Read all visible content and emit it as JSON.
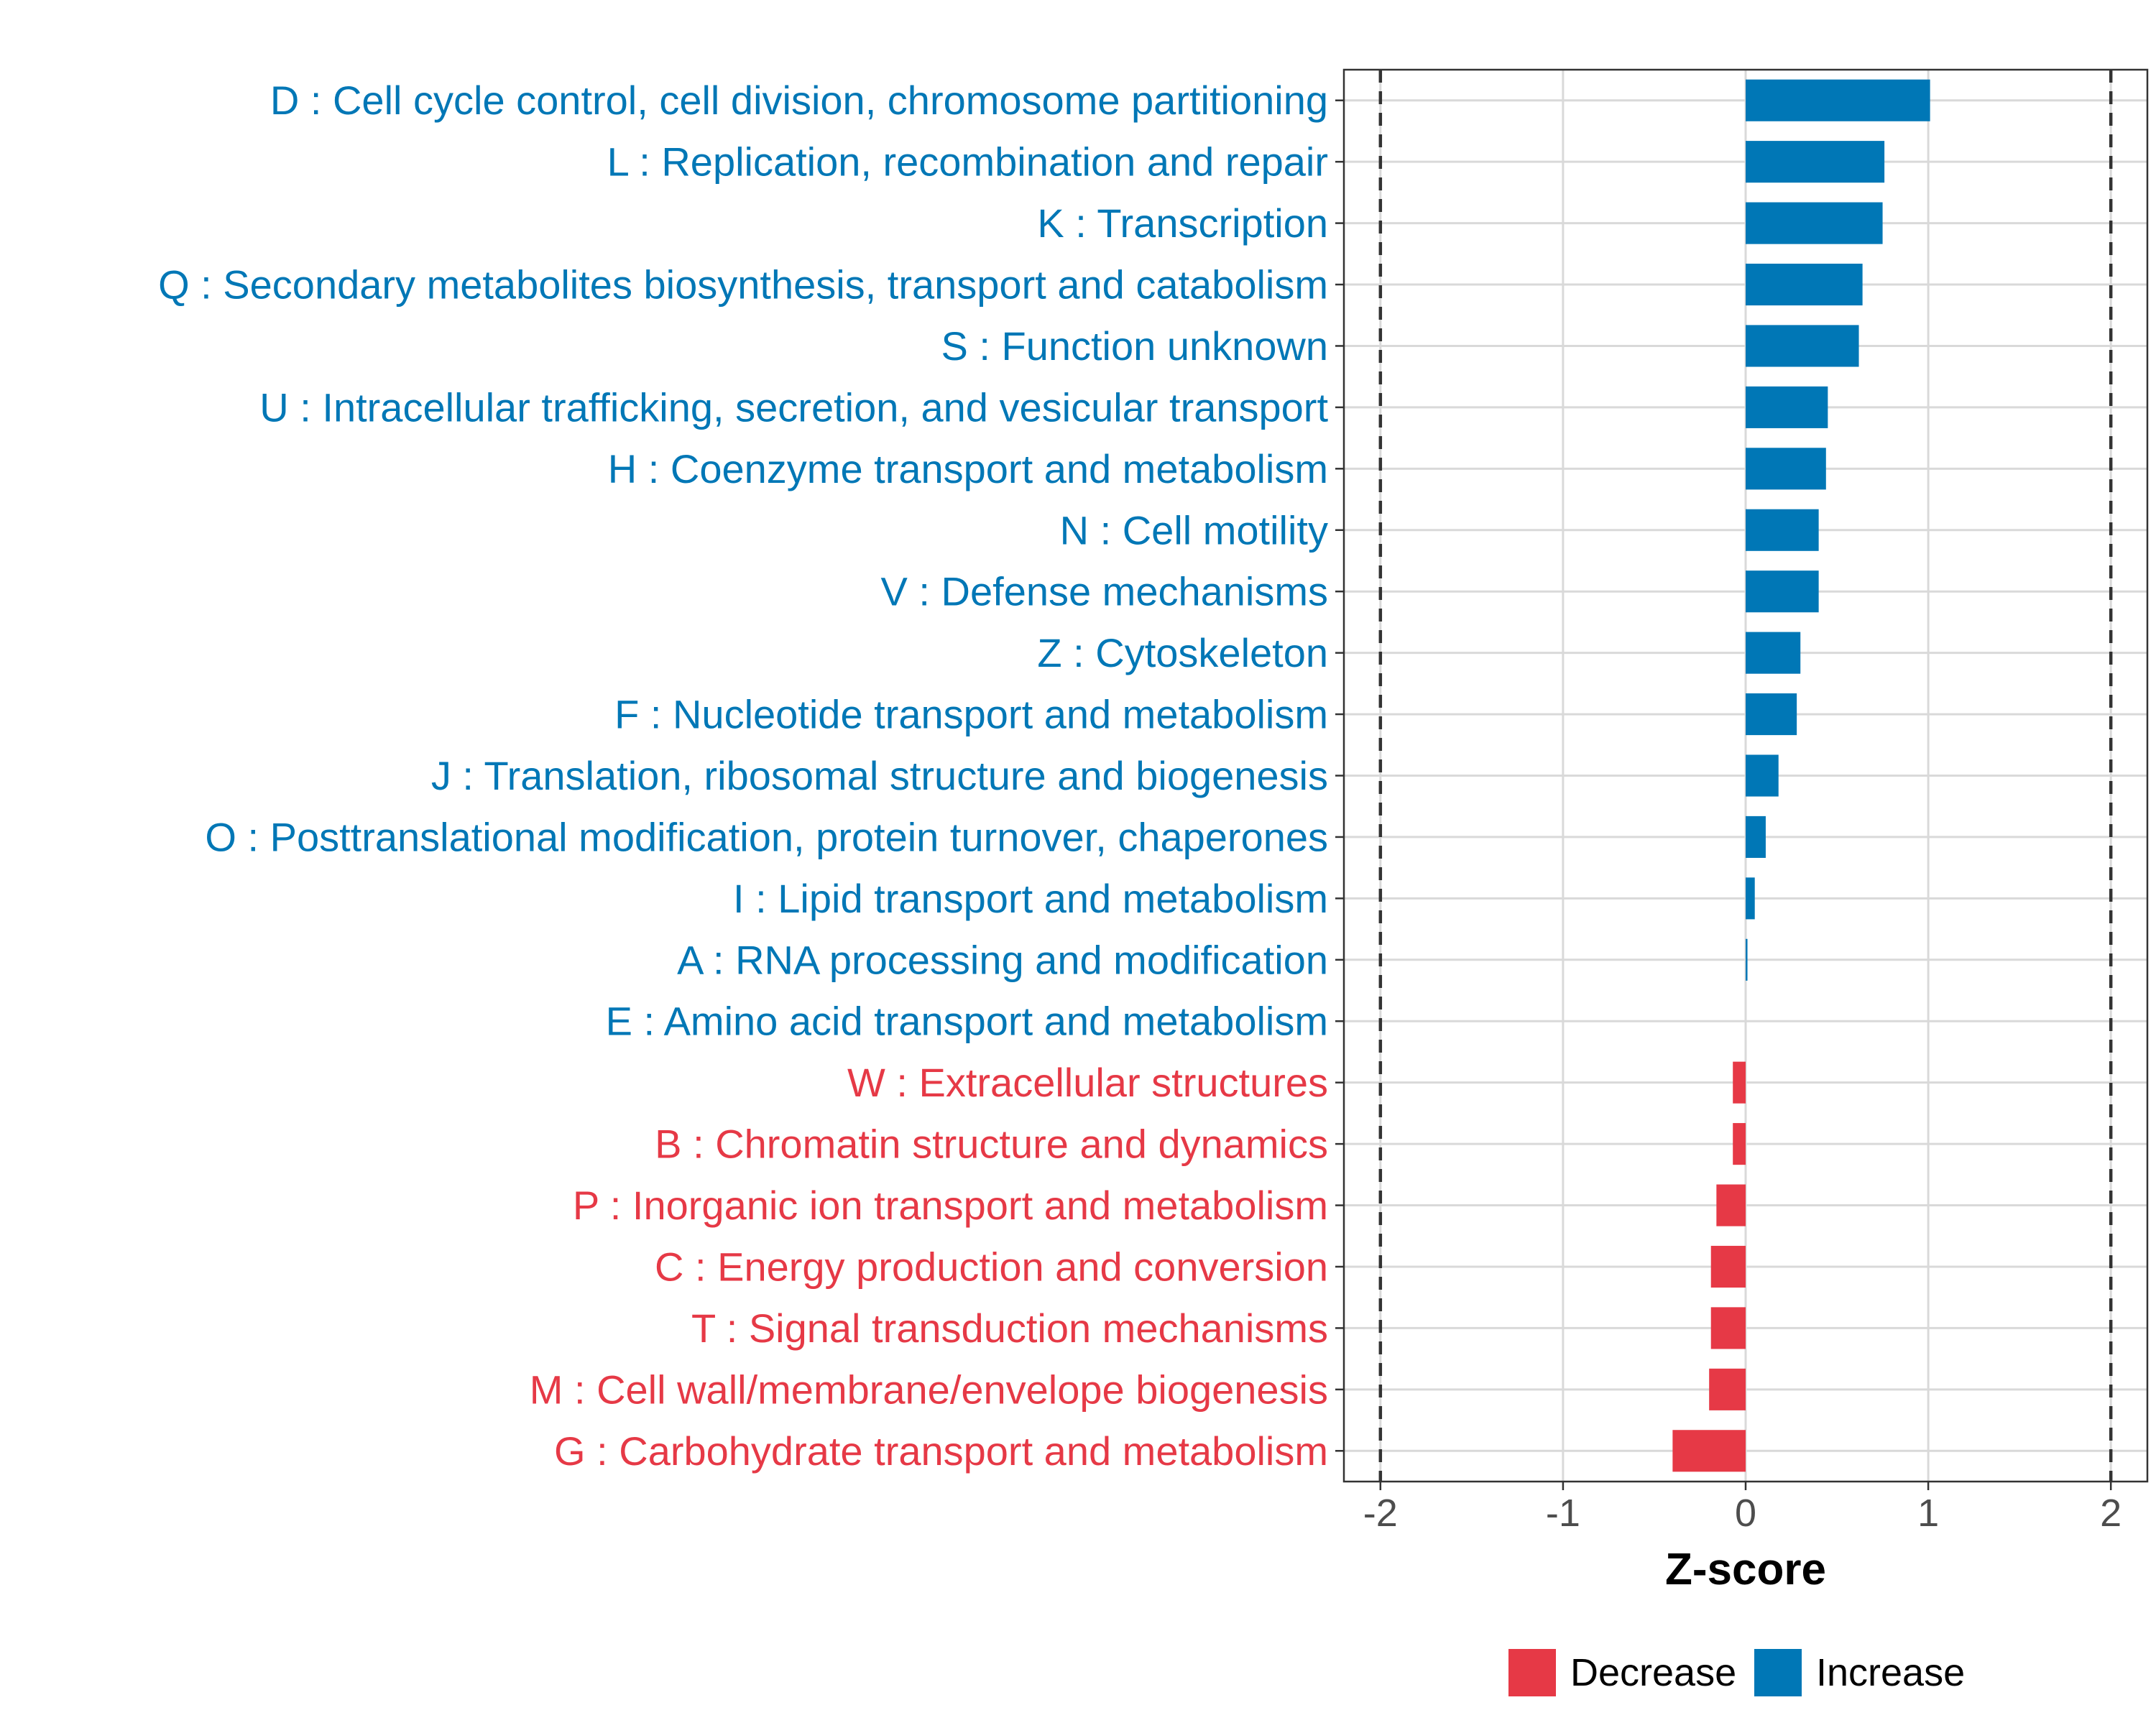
{
  "chart_data": {
    "type": "bar",
    "orientation": "horizontal",
    "categories": [
      "D : Cell cycle control, cell division, chromosome partitioning",
      "L : Replication, recombination and repair",
      "K : Transcription",
      "Q : Secondary metabolites biosynthesis, transport and catabolism",
      "S : Function unknown",
      "U : Intracellular trafficking, secretion, and vesicular transport",
      "H : Coenzyme transport and metabolism",
      "N : Cell motility",
      "V : Defense mechanisms",
      "Z : Cytoskeleton",
      "F : Nucleotide transport and metabolism",
      "J : Translation, ribosomal structure and biogenesis",
      "O : Posttranslational modification, protein turnover, chaperones",
      "I : Lipid transport and metabolism",
      "A : RNA processing and modification",
      "E : Amino acid transport and metabolism",
      "W : Extracellular structures",
      "B : Chromatin structure and dynamics",
      "P : Inorganic ion transport and metabolism",
      "C : Energy production and conversion",
      "T : Signal transduction mechanisms",
      "M : Cell wall/membrane/envelope biogenesis",
      "G : Carbohydrate transport and metabolism"
    ],
    "values": [
      1.01,
      0.76,
      0.75,
      0.64,
      0.62,
      0.45,
      0.44,
      0.4,
      0.4,
      0.3,
      0.28,
      0.18,
      0.11,
      0.05,
      0.01,
      0.0,
      -0.07,
      -0.07,
      -0.16,
      -0.19,
      -0.19,
      -0.2,
      -0.4
    ],
    "direction": [
      "Increase",
      "Increase",
      "Increase",
      "Increase",
      "Increase",
      "Increase",
      "Increase",
      "Increase",
      "Increase",
      "Increase",
      "Increase",
      "Increase",
      "Increase",
      "Increase",
      "Increase",
      "Increase",
      "Decrease",
      "Decrease",
      "Decrease",
      "Decrease",
      "Decrease",
      "Decrease",
      "Decrease"
    ],
    "title": "",
    "xlabel": "Z-score",
    "ylabel": "",
    "xlim": [
      -2.2,
      2.2
    ],
    "xticks": [
      -2,
      -1,
      0,
      1,
      2
    ],
    "xtick_labels": [
      "-2",
      "-1",
      "0",
      "1",
      "2"
    ],
    "reference_lines": [
      -2,
      2
    ],
    "grid": true,
    "legend": {
      "position": "bottom",
      "entries": [
        {
          "label": "Decrease",
          "color": "#e63946"
        },
        {
          "label": "Increase",
          "color": "#0077b6"
        }
      ]
    }
  },
  "colors": {
    "increase": "#0077b6",
    "decrease": "#e63946",
    "grid": "#d9d9d9",
    "axis": "#333333",
    "tick_text": "#4d4d4d",
    "reference_line": "#333333"
  }
}
